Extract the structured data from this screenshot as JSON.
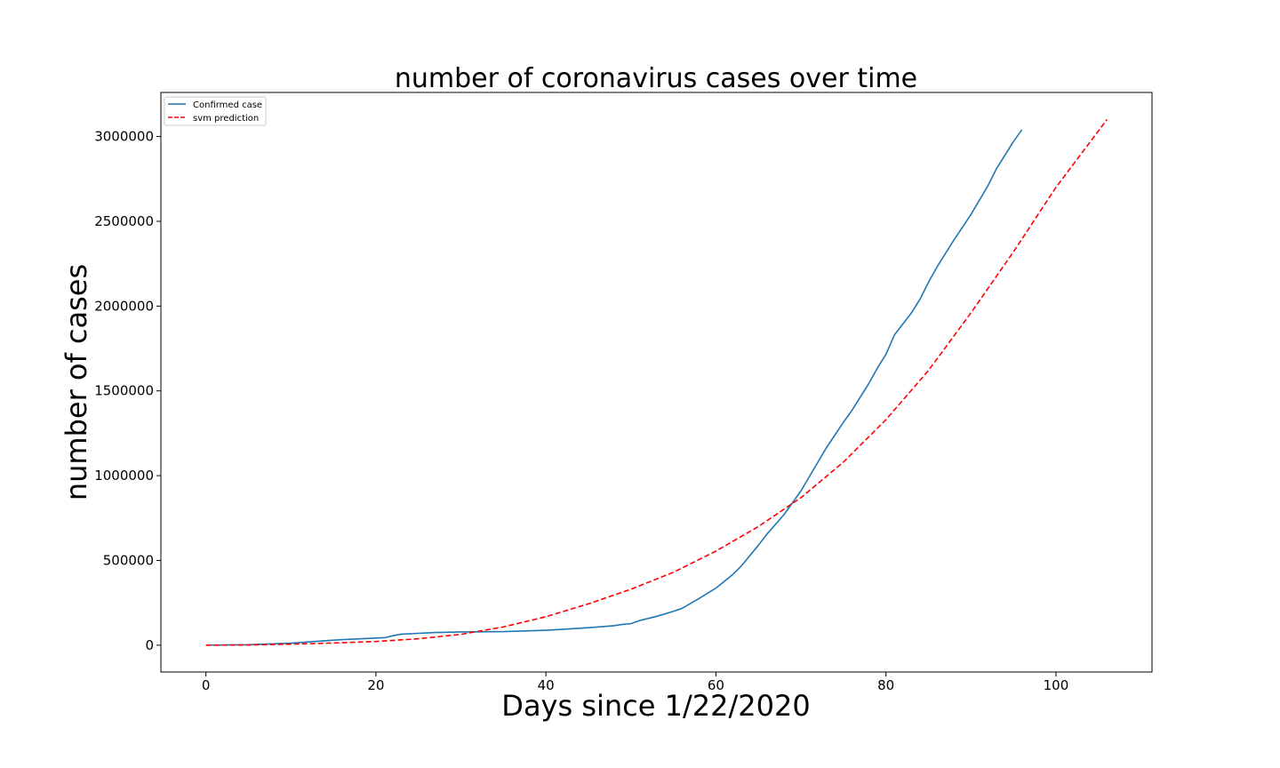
{
  "chart_data": {
    "type": "line",
    "title": "number of coronavirus cases over time",
    "xlabel": "Days since 1/22/2020",
    "ylabel": "number of cases",
    "xlim": [
      -5.3,
      111.3
    ],
    "ylim": [
      -158000,
      3260000
    ],
    "xticks": [
      0,
      20,
      40,
      60,
      80,
      100
    ],
    "yticks": [
      0,
      500000,
      1000000,
      1500000,
      2000000,
      2500000,
      3000000
    ],
    "ytick_labels": [
      "0",
      "500000",
      "1000000",
      "1500000",
      "2000000",
      "2500000",
      "3000000"
    ],
    "grid": false,
    "legend_position": "top-left",
    "colors": {
      "confirmed": "#1f77b4",
      "prediction": "#ff0000"
    },
    "series": [
      {
        "name": "Confirmed case",
        "style": "solid",
        "x": [
          0,
          5,
          10,
          15,
          20,
          21,
          22,
          23,
          25,
          27,
          30,
          35,
          40,
          45,
          48,
          49,
          50,
          51,
          53,
          55,
          56,
          58,
          60,
          62,
          63,
          65,
          66,
          68,
          70,
          72,
          73,
          75,
          76,
          78,
          79,
          80,
          81,
          83,
          84,
          85,
          86,
          88,
          90,
          92,
          93,
          94,
          95,
          96
        ],
        "y": [
          550,
          3000,
          12000,
          30000,
          42000,
          44000,
          56000,
          65000,
          70000,
          75000,
          78000,
          80000,
          88000,
          103000,
          115000,
          123000,
          127000,
          145000,
          170000,
          200000,
          217000,
          275000,
          337000,
          418000,
          468000,
          590000,
          655000,
          770000,
          910000,
          1080000,
          1165000,
          1315000,
          1385000,
          1545000,
          1635000,
          1715000,
          1830000,
          1960000,
          2040000,
          2140000,
          2230000,
          2390000,
          2540000,
          2710000,
          2810000,
          2890000,
          2970000,
          3040000
        ]
      },
      {
        "name": "svm prediction",
        "style": "dashed",
        "x": [
          0,
          5,
          10,
          15,
          20,
          25,
          30,
          35,
          40,
          45,
          50,
          55,
          60,
          65,
          70,
          75,
          80,
          85,
          90,
          95,
          100,
          106
        ],
        "y": [
          0,
          1500,
          6000,
          13000,
          22000,
          38000,
          64000,
          108000,
          168000,
          244000,
          330000,
          430000,
          555000,
          700000,
          870000,
          1080000,
          1330000,
          1620000,
          1960000,
          2320000,
          2700000,
          3100000
        ]
      }
    ]
  }
}
